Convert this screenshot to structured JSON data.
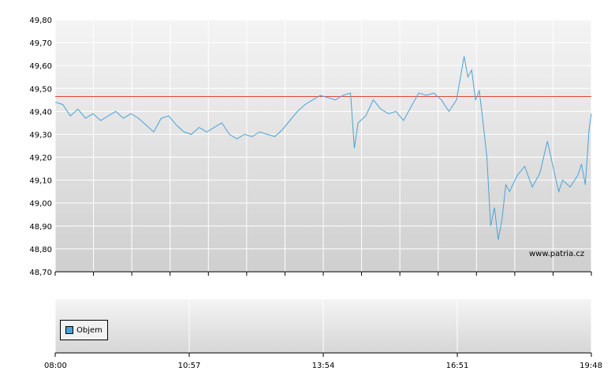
{
  "watermark": "www.patria.cz",
  "legend": {
    "label": "Objem",
    "color": "#4aa3d6"
  },
  "colors": {
    "line": "#4aa3d6",
    "reference": "#e0463a"
  },
  "chart_data": {
    "type": "line",
    "y_ticks": [
      "49,80",
      "49,70",
      "49,60",
      "49,50",
      "49,40",
      "49,30",
      "49,20",
      "49,10",
      "49,00",
      "48,90",
      "48,80",
      "48,70"
    ],
    "ylim": [
      48.7,
      49.8
    ],
    "x_ticks": [
      "08:00",
      "10:57",
      "13:54",
      "16:51",
      "19:48"
    ],
    "xlim": [
      "08:00",
      "19:48"
    ],
    "reference_line": 49.465,
    "series": [
      {
        "points": [
          [
            "08:00",
            49.44
          ],
          [
            "08:10",
            49.43
          ],
          [
            "08:20",
            49.38
          ],
          [
            "08:30",
            49.41
          ],
          [
            "08:40",
            49.37
          ],
          [
            "08:50",
            49.39
          ],
          [
            "09:00",
            49.36
          ],
          [
            "09:10",
            49.38
          ],
          [
            "09:20",
            49.4
          ],
          [
            "09:30",
            49.37
          ],
          [
            "09:40",
            49.39
          ],
          [
            "09:50",
            49.37
          ],
          [
            "10:00",
            49.34
          ],
          [
            "10:10",
            49.31
          ],
          [
            "10:20",
            49.37
          ],
          [
            "10:30",
            49.38
          ],
          [
            "10:40",
            49.34
          ],
          [
            "10:50",
            49.31
          ],
          [
            "11:00",
            49.3
          ],
          [
            "11:10",
            49.33
          ],
          [
            "11:20",
            49.31
          ],
          [
            "11:30",
            49.33
          ],
          [
            "11:40",
            49.35
          ],
          [
            "11:50",
            49.3
          ],
          [
            "12:00",
            49.28
          ],
          [
            "12:10",
            49.3
          ],
          [
            "12:20",
            49.29
          ],
          [
            "12:30",
            49.31
          ],
          [
            "12:40",
            49.3
          ],
          [
            "12:50",
            49.29
          ],
          [
            "13:00",
            49.32
          ],
          [
            "13:10",
            49.36
          ],
          [
            "13:20",
            49.4
          ],
          [
            "13:30",
            49.43
          ],
          [
            "13:40",
            49.45
          ],
          [
            "13:50",
            49.47
          ],
          [
            "14:00",
            49.46
          ],
          [
            "14:10",
            49.45
          ],
          [
            "14:20",
            49.47
          ],
          [
            "14:30",
            49.48
          ],
          [
            "14:35",
            49.24
          ],
          [
            "14:40",
            49.35
          ],
          [
            "14:50",
            49.38
          ],
          [
            "15:00",
            49.45
          ],
          [
            "15:10",
            49.41
          ],
          [
            "15:20",
            49.39
          ],
          [
            "15:30",
            49.4
          ],
          [
            "15:40",
            49.36
          ],
          [
            "15:50",
            49.42
          ],
          [
            "16:00",
            49.48
          ],
          [
            "16:10",
            49.47
          ],
          [
            "16:20",
            49.48
          ],
          [
            "16:30",
            49.45
          ],
          [
            "16:40",
            49.4
          ],
          [
            "16:50",
            49.45
          ],
          [
            "17:00",
            49.64
          ],
          [
            "17:05",
            49.55
          ],
          [
            "17:10",
            49.58
          ],
          [
            "17:15",
            49.45
          ],
          [
            "17:20",
            49.49
          ],
          [
            "17:25",
            49.35
          ],
          [
            "17:30",
            49.2
          ],
          [
            "17:35",
            48.9
          ],
          [
            "17:40",
            48.98
          ],
          [
            "17:45",
            48.84
          ],
          [
            "17:50",
            48.93
          ],
          [
            "17:55",
            49.08
          ],
          [
            "18:00",
            49.05
          ],
          [
            "18:10",
            49.12
          ],
          [
            "18:20",
            49.16
          ],
          [
            "18:30",
            49.07
          ],
          [
            "18:40",
            49.13
          ],
          [
            "18:50",
            49.27
          ],
          [
            "19:00",
            49.12
          ],
          [
            "19:05",
            49.05
          ],
          [
            "19:10",
            49.1
          ],
          [
            "19:20",
            49.07
          ],
          [
            "19:30",
            49.12
          ],
          [
            "19:35",
            49.17
          ],
          [
            "19:40",
            49.08
          ],
          [
            "19:45",
            49.32
          ],
          [
            "19:48",
            49.39
          ]
        ]
      }
    ]
  }
}
